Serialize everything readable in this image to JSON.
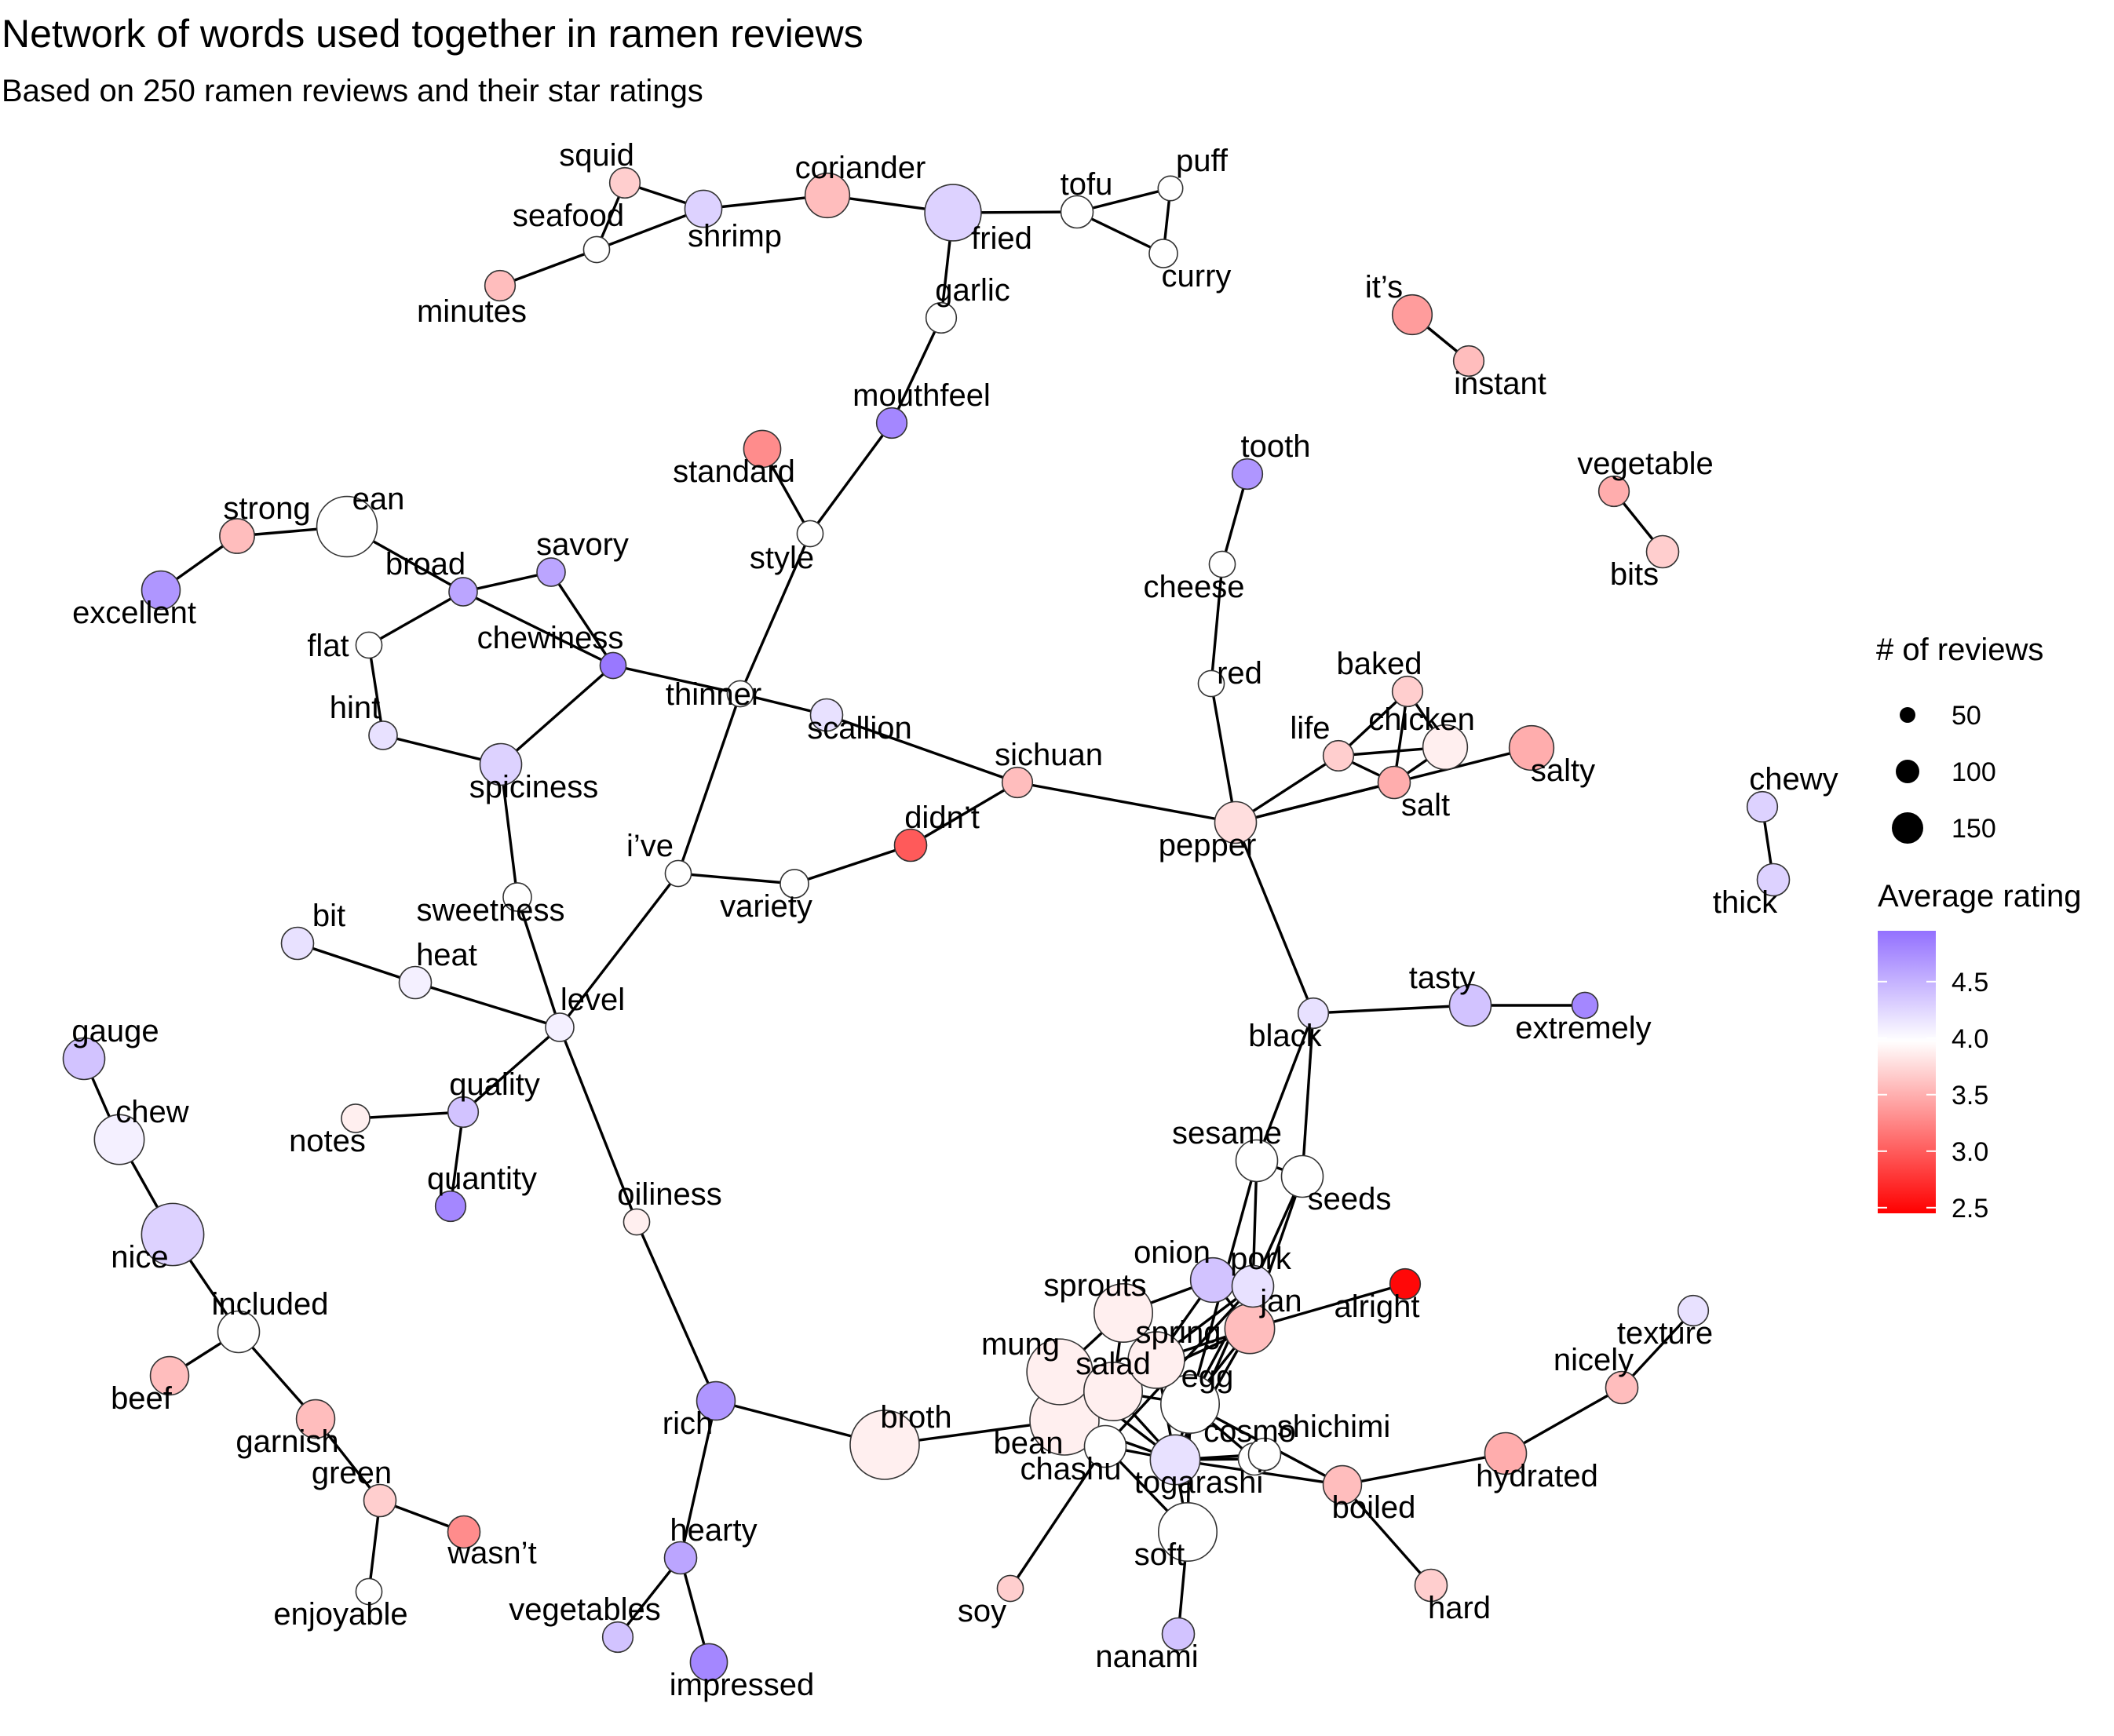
{
  "title": "Network of words used together in ramen reviews",
  "subtitle": "Based on 250 ramen reviews and their star ratings",
  "legend": {
    "size_title": "# of reviews",
    "size_items": [
      {
        "label": "50",
        "value": 50
      },
      {
        "label": "100",
        "value": 100
      },
      {
        "label": "150",
        "value": 150
      }
    ],
    "color_title": "Average rating",
    "color_ticks": [
      {
        "label": "4.5",
        "value": 4.5
      },
      {
        "label": "4.0",
        "value": 4.0
      },
      {
        "label": "3.5",
        "value": 3.5
      },
      {
        "label": "3.0",
        "value": 3.0
      },
      {
        "label": "2.5",
        "value": 2.5
      }
    ],
    "color_min": 2.45,
    "color_max": 4.95,
    "color_low": "#ff0000",
    "color_mid": "#ffffff",
    "color_high": "#9370ff",
    "color_midpoint": 4.0
  },
  "nodes": [
    {
      "word": "squid",
      "n": 10,
      "rating": 3.7
    },
    {
      "word": "seafood",
      "n": 6,
      "rating": 4.0
    },
    {
      "word": "minutes",
      "n": 10,
      "rating": 3.6
    },
    {
      "word": "shrimp",
      "n": 18,
      "rating": 4.3
    },
    {
      "word": "coriander",
      "n": 30,
      "rating": 3.6
    },
    {
      "word": "fried",
      "n": 55,
      "rating": 4.3
    },
    {
      "word": "tofu",
      "n": 12,
      "rating": 4.0
    },
    {
      "word": "puff",
      "n": 5,
      "rating": 4.0
    },
    {
      "word": "curry",
      "n": 8,
      "rating": 4.0
    },
    {
      "word": "garlic",
      "n": 10,
      "rating": 4.0
    },
    {
      "word": "it’s",
      "n": 22,
      "rating": 3.4
    },
    {
      "word": "instant",
      "n": 10,
      "rating": 3.6
    },
    {
      "word": "mouthfeel",
      "n": 10,
      "rating": 4.8
    },
    {
      "word": "standard",
      "n": 18,
      "rating": 3.3
    },
    {
      "word": "vegetable",
      "n": 10,
      "rating": 3.5
    },
    {
      "word": "bits",
      "n": 12,
      "rating": 3.7
    },
    {
      "word": "strong",
      "n": 15,
      "rating": 3.6
    },
    {
      "word": "ean",
      "n": 65,
      "rating": 4.0
    },
    {
      "word": "excellent",
      "n": 20,
      "rating": 4.7
    },
    {
      "word": "broad",
      "n": 8,
      "rating": 4.6
    },
    {
      "word": "savory",
      "n": 8,
      "rating": 4.6
    },
    {
      "word": "style",
      "n": 6,
      "rating": 4.0
    },
    {
      "word": "tooth",
      "n": 10,
      "rating": 4.7
    },
    {
      "word": "cheese",
      "n": 6,
      "rating": 4.0
    },
    {
      "word": "chewiness",
      "n": 6,
      "rating": 4.9
    },
    {
      "word": "flat",
      "n": 6,
      "rating": 4.0
    },
    {
      "word": "thinner",
      "n": 6,
      "rating": 4.0
    },
    {
      "word": "red",
      "n": 6,
      "rating": 4.0
    },
    {
      "word": "baked",
      "n": 10,
      "rating": 3.7
    },
    {
      "word": "hint",
      "n": 8,
      "rating": 4.2
    },
    {
      "word": "scallion",
      "n": 12,
      "rating": 4.2
    },
    {
      "word": "chicken",
      "n": 30,
      "rating": 3.9
    },
    {
      "word": "life",
      "n": 10,
      "rating": 3.7
    },
    {
      "word": "salty",
      "n": 30,
      "rating": 3.5
    },
    {
      "word": "spiciness",
      "n": 25,
      "rating": 4.3
    },
    {
      "word": "sichuan",
      "n": 10,
      "rating": 3.6
    },
    {
      "word": "salt",
      "n": 12,
      "rating": 3.5
    },
    {
      "word": "chewy",
      "n": 10,
      "rating": 4.3
    },
    {
      "word": "didn’t",
      "n": 12,
      "rating": 3.0
    },
    {
      "word": "pepper",
      "n": 25,
      "rating": 3.8
    },
    {
      "word": "i’ve",
      "n": 6,
      "rating": 4.0
    },
    {
      "word": "thick",
      "n": 12,
      "rating": 4.3
    },
    {
      "word": "variety",
      "n": 8,
      "rating": 4.0
    },
    {
      "word": "bit",
      "n": 12,
      "rating": 4.2
    },
    {
      "word": "sweetness",
      "n": 8,
      "rating": 4.0
    },
    {
      "word": "heat",
      "n": 12,
      "rating": 4.1
    },
    {
      "word": "level",
      "n": 8,
      "rating": 4.1
    },
    {
      "word": "tasty",
      "n": 25,
      "rating": 4.4
    },
    {
      "word": "extremely",
      "n": 6,
      "rating": 4.8
    },
    {
      "word": "black",
      "n": 10,
      "rating": 4.2
    },
    {
      "word": "gauge",
      "n": 25,
      "rating": 4.4
    },
    {
      "word": "quality",
      "n": 10,
      "rating": 4.4
    },
    {
      "word": "notes",
      "n": 8,
      "rating": 3.9
    },
    {
      "word": "chew",
      "n": 40,
      "rating": 4.1
    },
    {
      "word": "sesame",
      "n": 25,
      "rating": 4.0
    },
    {
      "word": "seeds",
      "n": 25,
      "rating": 4.0
    },
    {
      "word": "quantity",
      "n": 10,
      "rating": 4.8
    },
    {
      "word": "oiliness",
      "n": 6,
      "rating": 3.9
    },
    {
      "word": "nice",
      "n": 70,
      "rating": 4.3
    },
    {
      "word": "onion",
      "n": 30,
      "rating": 4.4
    },
    {
      "word": "pork",
      "n": 25,
      "rating": 4.2
    },
    {
      "word": "alright",
      "n": 10,
      "rating": 2.5
    },
    {
      "word": "included",
      "n": 25,
      "rating": 4.0
    },
    {
      "word": "sprouts",
      "n": 60,
      "rating": 3.9
    },
    {
      "word": "jan",
      "n": 40,
      "rating": 3.6
    },
    {
      "word": "texture",
      "n": 10,
      "rating": 4.2
    },
    {
      "word": "spring",
      "n": 55,
      "rating": 3.9
    },
    {
      "word": "beef",
      "n": 20,
      "rating": 3.6
    },
    {
      "word": "mung",
      "n": 80,
      "rating": 3.9
    },
    {
      "word": "salad",
      "n": 60,
      "rating": 3.9
    },
    {
      "word": "egg",
      "n": 60,
      "rating": 4.0
    },
    {
      "word": "nicely",
      "n": 12,
      "rating": 3.6
    },
    {
      "word": "garnish",
      "n": 20,
      "rating": 3.6
    },
    {
      "word": "rich",
      "n": 20,
      "rating": 4.7
    },
    {
      "word": "broth",
      "n": 90,
      "rating": 3.9
    },
    {
      "word": "bean",
      "n": 90,
      "rating": 3.9
    },
    {
      "word": "cosmo",
      "n": 12,
      "rating": 4.0
    },
    {
      "word": "shichimi",
      "n": 12,
      "rating": 4.0
    },
    {
      "word": "hydrated",
      "n": 25,
      "rating": 3.5
    },
    {
      "word": "green",
      "n": 12,
      "rating": 3.7
    },
    {
      "word": "chashu",
      "n": 25,
      "rating": 4.0
    },
    {
      "word": "togarashi",
      "n": 40,
      "rating": 4.2
    },
    {
      "word": "boiled",
      "n": 20,
      "rating": 3.6
    },
    {
      "word": "wasn’t",
      "n": 12,
      "rating": 3.3
    },
    {
      "word": "hearty",
      "n": 12,
      "rating": 4.6
    },
    {
      "word": "soft",
      "n": 60,
      "rating": 4.0
    },
    {
      "word": "enjoyable",
      "n": 6,
      "rating": 4.0
    },
    {
      "word": "soy",
      "n": 6,
      "rating": 3.7
    },
    {
      "word": "hard",
      "n": 12,
      "rating": 3.7
    },
    {
      "word": "vegetables",
      "n": 10,
      "rating": 4.4
    },
    {
      "word": "nanami",
      "n": 12,
      "rating": 4.4
    },
    {
      "word": "impressed",
      "n": 18,
      "rating": 4.8
    }
  ],
  "edges": [
    [
      "squid",
      "shrimp"
    ],
    [
      "squid",
      "seafood"
    ],
    [
      "seafood",
      "shrimp"
    ],
    [
      "seafood",
      "minutes"
    ],
    [
      "shrimp",
      "coriander"
    ],
    [
      "coriander",
      "fried"
    ],
    [
      "fried",
      "tofu"
    ],
    [
      "tofu",
      "puff"
    ],
    [
      "tofu",
      "curry"
    ],
    [
      "puff",
      "curry"
    ],
    [
      "fried",
      "garlic"
    ],
    [
      "garlic",
      "mouthfeel"
    ],
    [
      "mouthfeel",
      "style"
    ],
    [
      "standard",
      "style"
    ],
    [
      "style",
      "thinner"
    ],
    [
      "it’s",
      "instant"
    ],
    [
      "vegetable",
      "bits"
    ],
    [
      "excellent",
      "strong"
    ],
    [
      "strong",
      "ean"
    ],
    [
      "ean",
      "broad"
    ],
    [
      "broad",
      "savory"
    ],
    [
      "broad",
      "chewiness"
    ],
    [
      "savory",
      "chewiness"
    ],
    [
      "broad",
      "flat"
    ],
    [
      "flat",
      "hint"
    ],
    [
      "hint",
      "spiciness"
    ],
    [
      "spiciness",
      "chewiness"
    ],
    [
      "spiciness",
      "sweetness"
    ],
    [
      "sweetness",
      "level"
    ],
    [
      "thinner",
      "chewiness"
    ],
    [
      "thinner",
      "scallion"
    ],
    [
      "scallion",
      "sichuan"
    ],
    [
      "thinner",
      "i’ve"
    ],
    [
      "i’ve",
      "level"
    ],
    [
      "i’ve",
      "variety"
    ],
    [
      "variety",
      "didn’t"
    ],
    [
      "didn’t",
      "sichuan"
    ],
    [
      "sichuan",
      "pepper"
    ],
    [
      "tooth",
      "cheese"
    ],
    [
      "cheese",
      "red"
    ],
    [
      "red",
      "pepper"
    ],
    [
      "pepper",
      "life"
    ],
    [
      "pepper",
      "salt"
    ],
    [
      "pepper",
      "salty"
    ],
    [
      "pepper",
      "black"
    ],
    [
      "life",
      "baked"
    ],
    [
      "life",
      "chicken"
    ],
    [
      "life",
      "salt"
    ],
    [
      "baked",
      "salt"
    ],
    [
      "baked",
      "chicken"
    ],
    [
      "chicken",
      "salt"
    ],
    [
      "chewy",
      "thick"
    ],
    [
      "bit",
      "heat"
    ],
    [
      "heat",
      "level"
    ],
    [
      "level",
      "quality"
    ],
    [
      "quality",
      "notes"
    ],
    [
      "quality",
      "quantity"
    ],
    [
      "level",
      "oiliness"
    ],
    [
      "oiliness",
      "rich"
    ],
    [
      "black",
      "tasty"
    ],
    [
      "tasty",
      "extremely"
    ],
    [
      "black",
      "sesame"
    ],
    [
      "black",
      "seeds"
    ],
    [
      "sesame",
      "seeds"
    ],
    [
      "sesame",
      "pork"
    ],
    [
      "seeds",
      "pork"
    ],
    [
      "sesame",
      "egg"
    ],
    [
      "seeds",
      "jan"
    ],
    [
      "gauge",
      "chew"
    ],
    [
      "chew",
      "nice"
    ],
    [
      "nice",
      "included"
    ],
    [
      "included",
      "beef"
    ],
    [
      "included",
      "garnish"
    ],
    [
      "garnish",
      "green"
    ],
    [
      "green",
      "wasn’t"
    ],
    [
      "green",
      "enjoyable"
    ],
    [
      "rich",
      "broth"
    ],
    [
      "rich",
      "hearty"
    ],
    [
      "hearty",
      "vegetables"
    ],
    [
      "hearty",
      "impressed"
    ],
    [
      "broth",
      "bean"
    ],
    [
      "onion",
      "spring"
    ],
    [
      "onion",
      "sprouts"
    ],
    [
      "onion",
      "jan"
    ],
    [
      "pork",
      "jan"
    ],
    [
      "pork",
      "egg"
    ],
    [
      "pork",
      "salad"
    ],
    [
      "pork",
      "chashu"
    ],
    [
      "jan",
      "alright"
    ],
    [
      "jan",
      "spring"
    ],
    [
      "jan",
      "egg"
    ],
    [
      "jan",
      "salad"
    ],
    [
      "sprouts",
      "mung"
    ],
    [
      "sprouts",
      "salad"
    ],
    [
      "spring",
      "salad"
    ],
    [
      "spring",
      "egg"
    ],
    [
      "mung",
      "bean"
    ],
    [
      "mung",
      "salad"
    ],
    [
      "salad",
      "egg"
    ],
    [
      "salad",
      "bean"
    ],
    [
      "egg",
      "soft"
    ],
    [
      "egg",
      "boiled"
    ],
    [
      "egg",
      "togarashi"
    ],
    [
      "bean",
      "chashu"
    ],
    [
      "chashu",
      "togarashi"
    ],
    [
      "togarashi",
      "cosmo"
    ],
    [
      "togarashi",
      "shichimi"
    ],
    [
      "cosmo",
      "shichimi"
    ],
    [
      "togarashi",
      "boiled"
    ],
    [
      "boiled",
      "hydrated"
    ],
    [
      "boiled",
      "hard"
    ],
    [
      "hydrated",
      "nicely"
    ],
    [
      "nicely",
      "texture"
    ],
    [
      "chashu",
      "soy"
    ],
    [
      "togarashi",
      "soft"
    ],
    [
      "soft",
      "nanami"
    ],
    [
      "chashu",
      "soft"
    ],
    [
      "bean",
      "togarashi"
    ],
    [
      "salad",
      "togarashi"
    ],
    [
      "spring",
      "togarashi"
    ],
    [
      "mung",
      "togarashi"
    ],
    [
      "egg",
      "cosmo"
    ],
    [
      "jan",
      "togarashi"
    ],
    [
      "pork",
      "togarashi"
    ]
  ]
}
